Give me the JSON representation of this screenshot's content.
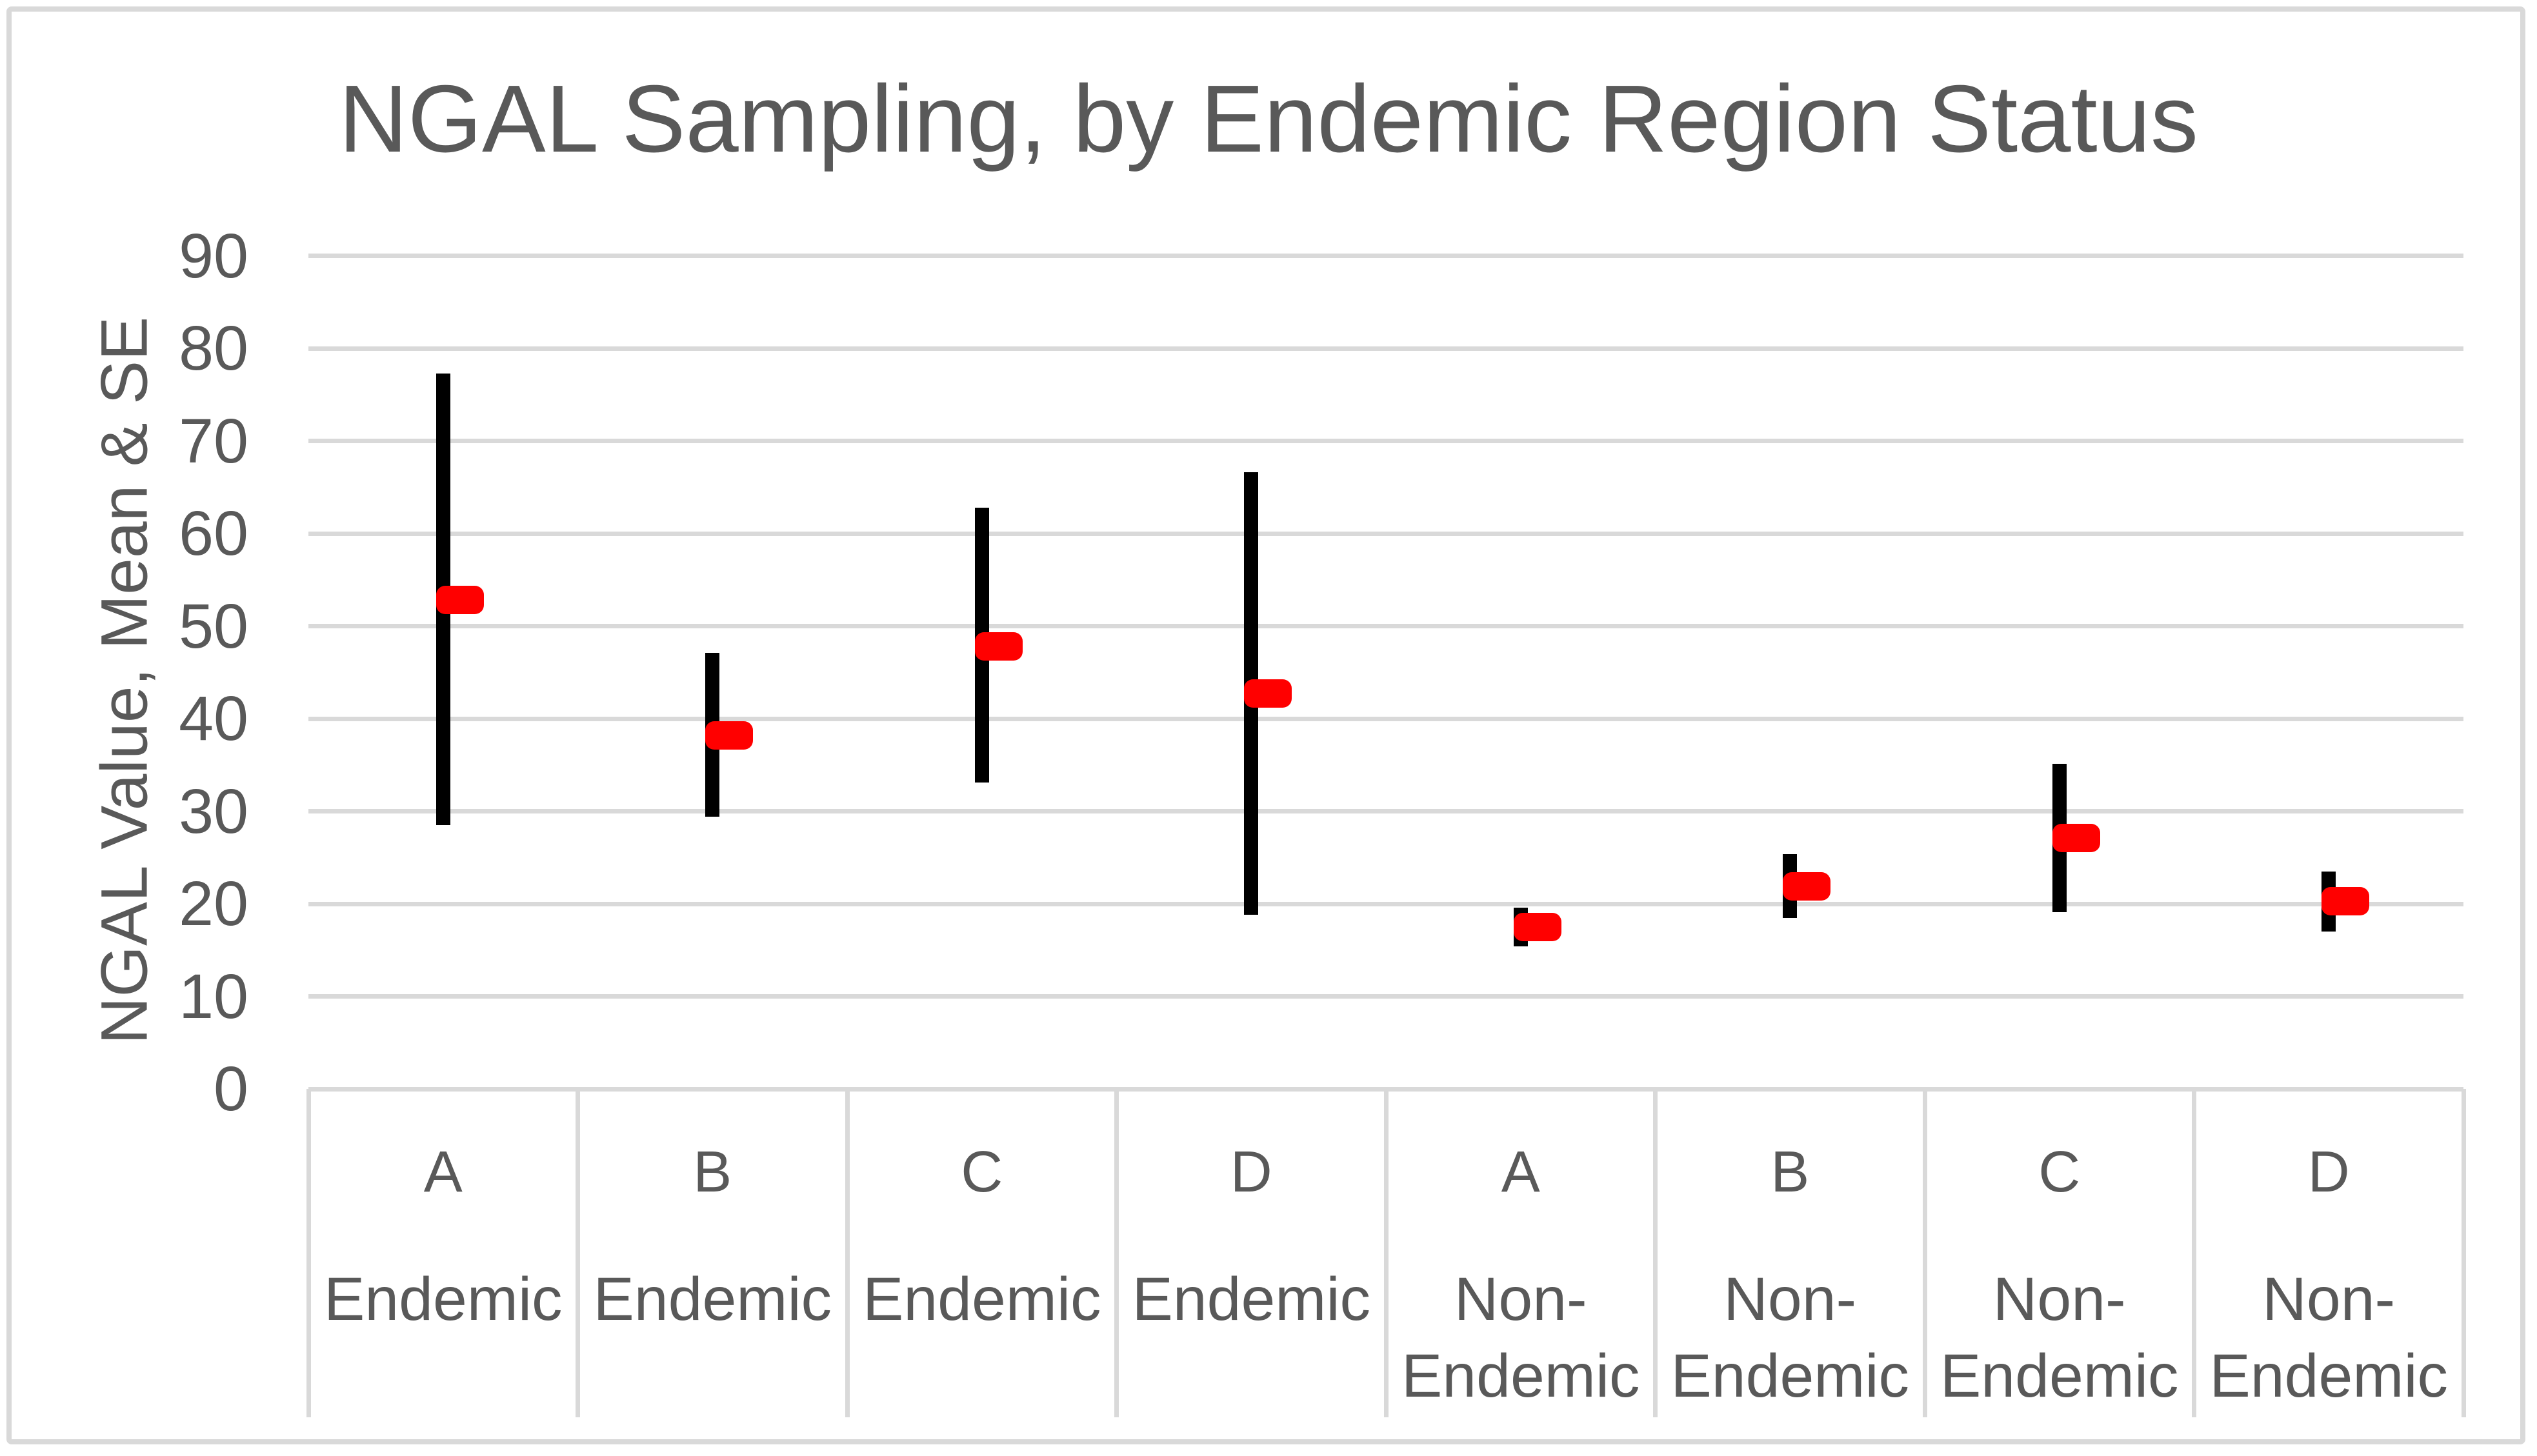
{
  "chart_data": {
    "type": "scatter",
    "subtype": "mean-with-se-error-bars",
    "title": "NGAL Sampling, by Endemic Region Status",
    "xlabel": "",
    "ylabel": "NGAL Value, Mean & SE",
    "ylim": [
      0,
      90
    ],
    "yticks": [
      0,
      10,
      20,
      30,
      40,
      50,
      60,
      70,
      80,
      90
    ],
    "grid": true,
    "legend": false,
    "categories": [
      {
        "sample": "A",
        "group": "Endemic",
        "mean": 52.8,
        "upper": 77.3,
        "lower": 28.5
      },
      {
        "sample": "B",
        "group": "Endemic",
        "mean": 38.2,
        "upper": 47.1,
        "lower": 29.4
      },
      {
        "sample": "C",
        "group": "Endemic",
        "mean": 47.8,
        "upper": 62.8,
        "lower": 33.1
      },
      {
        "sample": "D",
        "group": "Endemic",
        "mean": 42.7,
        "upper": 66.6,
        "lower": 18.8
      },
      {
        "sample": "A",
        "group": "Non-Endemic",
        "mean": 17.5,
        "upper": 19.6,
        "lower": 15.4
      },
      {
        "sample": "B",
        "group": "Non-Endemic",
        "mean": 21.9,
        "upper": 25.4,
        "lower": 18.5
      },
      {
        "sample": "C",
        "group": "Non-Endemic",
        "mean": 27.1,
        "upper": 35.1,
        "lower": 19.1
      },
      {
        "sample": "D",
        "group": "Non-Endemic",
        "mean": 20.3,
        "upper": 23.5,
        "lower": 17.0
      }
    ],
    "colors": {
      "mean_marker": "#FF0000",
      "error_bar": "#000000",
      "gridline": "#D9D9D9",
      "axis_table_line": "#D9D9D9",
      "text": "#595959",
      "chart_border": "#D9D9D9",
      "background": "#FFFFFF"
    }
  }
}
